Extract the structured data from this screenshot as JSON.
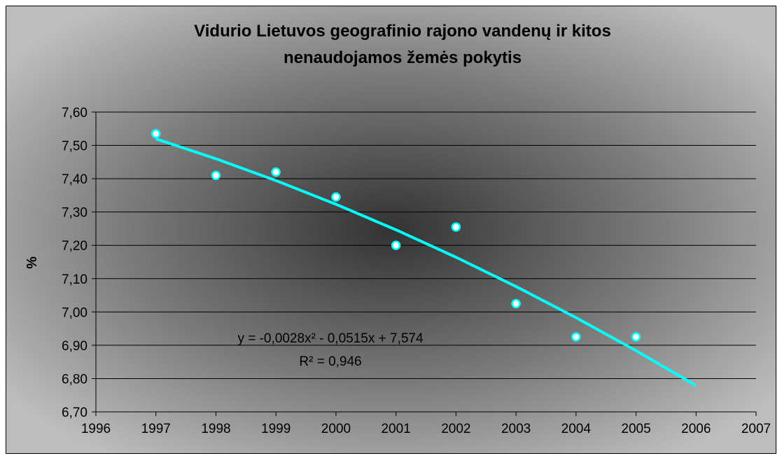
{
  "chart_data": {
    "type": "scatter",
    "title": [
      "Vidurio Lietuvos geografinio rajono vandenų ir kitos",
      "nenaudojamos žemės pokytis"
    ],
    "y_label": "%",
    "x": [
      1997,
      1998,
      1999,
      2000,
      2001,
      2002,
      2003,
      2004,
      2005
    ],
    "series": [
      {
        "name": null,
        "color": "#00ffff",
        "values": [
          7.535,
          7.41,
          7.42,
          7.345,
          7.2,
          7.255,
          7.025,
          6.925,
          6.925
        ]
      }
    ],
    "trendline": {
      "color": "#00ffff",
      "x": [
        1997,
        1998,
        1999,
        2000,
        2001,
        2002,
        2003,
        2004,
        2005,
        2006
      ],
      "values": [
        7.5197,
        7.4598,
        7.3943,
        7.3232,
        7.2465,
        7.1642,
        7.0763,
        6.9828,
        6.8837,
        6.779
      ],
      "equation": "y = -0,0028x² - 0,0515x + 7,574",
      "r_squared": "R² = 0,946"
    },
    "xlim": [
      1996,
      2007
    ],
    "xticks": [
      1996,
      1997,
      1998,
      1999,
      2000,
      2001,
      2002,
      2003,
      2004,
      2005,
      2006,
      2007
    ],
    "ylim": [
      6.7,
      7.6
    ],
    "yticks": [
      {
        "value": 6.7,
        "label": "6,70"
      },
      {
        "value": 6.8,
        "label": "6,80"
      },
      {
        "value": 6.9,
        "label": "6,90"
      },
      {
        "value": 7.0,
        "label": "7,00"
      },
      {
        "value": 7.1,
        "label": "7,10"
      },
      {
        "value": 7.2,
        "label": "7,20"
      },
      {
        "value": 7.3,
        "label": "7,30"
      },
      {
        "value": 7.4,
        "label": "7,40"
      },
      {
        "value": 7.5,
        "label": "7,50"
      },
      {
        "value": 7.6,
        "label": "7,60"
      }
    ],
    "grid": true
  }
}
